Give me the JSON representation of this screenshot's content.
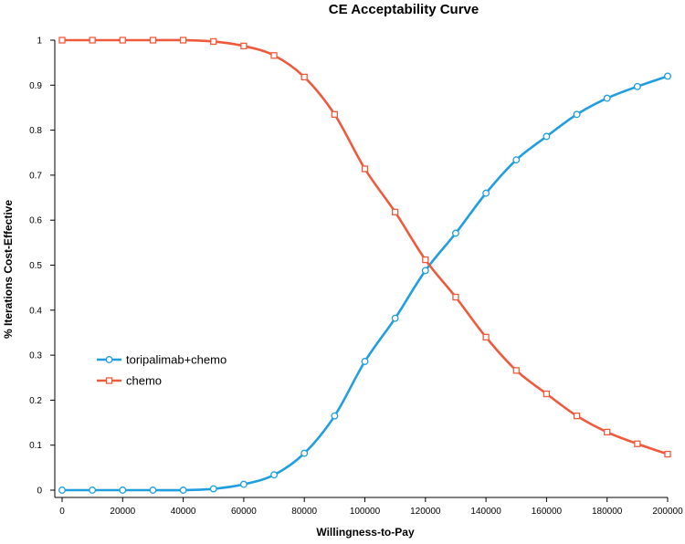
{
  "chart_data": {
    "type": "line",
    "title": "CE Acceptability Curve",
    "xlabel": "Willingness-to-Pay",
    "ylabel": "% Iterations Cost-Effective",
    "xlim": [
      0,
      200000
    ],
    "ylim": [
      0,
      1
    ],
    "x_ticks": [
      0,
      20000,
      40000,
      60000,
      80000,
      100000,
      120000,
      140000,
      160000,
      180000,
      200000
    ],
    "y_ticks": [
      0,
      0.1,
      0.2,
      0.3,
      0.4,
      0.5,
      0.6,
      0.7,
      0.8,
      0.9,
      1
    ],
    "x_tick_labels": [
      "0",
      "20000",
      "40000",
      "60000",
      "80000",
      "100000",
      "120000",
      "140000",
      "160000",
      "180000",
      "200000"
    ],
    "y_tick_labels": [
      "0",
      "0.1",
      "0.2",
      "0.3",
      "0.4",
      "0.5",
      "0.6",
      "0.7",
      "0.8",
      "0.9",
      "1"
    ],
    "x": [
      0,
      10000,
      20000,
      30000,
      40000,
      50000,
      60000,
      70000,
      80000,
      90000,
      100000,
      110000,
      120000,
      130000,
      140000,
      150000,
      160000,
      170000,
      180000,
      190000,
      200000
    ],
    "series": [
      {
        "name": "toripalimab+chemo",
        "color": "#1f9ee0",
        "marker": "circle",
        "values": [
          0,
          0,
          0,
          0,
          0,
          0.003,
          0.013,
          0.034,
          0.082,
          0.165,
          0.286,
          0.382,
          0.488,
          0.571,
          0.66,
          0.734,
          0.786,
          0.835,
          0.871,
          0.897,
          0.92
        ]
      },
      {
        "name": "chemo",
        "color": "#f05a3c",
        "marker": "square",
        "values": [
          1,
          1,
          1,
          1,
          1,
          0.997,
          0.987,
          0.966,
          0.918,
          0.835,
          0.714,
          0.618,
          0.512,
          0.429,
          0.34,
          0.266,
          0.214,
          0.165,
          0.129,
          0.103,
          0.08
        ]
      }
    ],
    "legend_position": "left-lower",
    "grid": false
  }
}
